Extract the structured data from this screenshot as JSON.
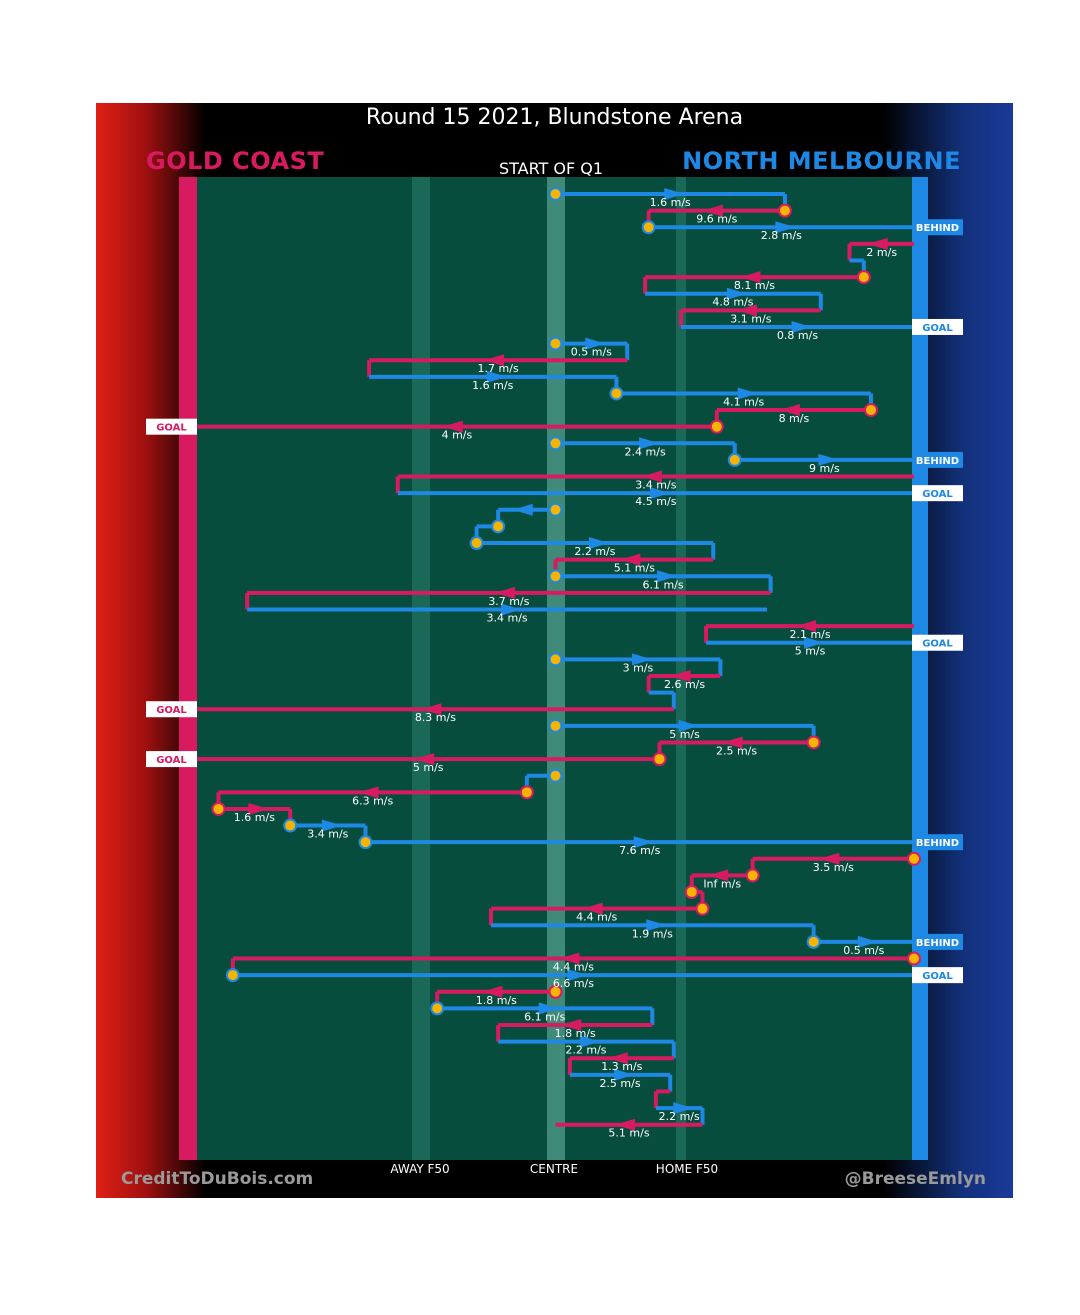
{
  "header": {
    "title": "Round 15 2021, Blundstone Arena",
    "home_team": "GOLD COAST",
    "away_team": "NORTH MELBOURNE",
    "quarter_label": "START OF Q1"
  },
  "footer": {
    "credit": "CreditToDuBois.com",
    "handle": "@BreeseEmlyn"
  },
  "colors": {
    "gold_coast": "#d81b60",
    "north_melbourne": "#1e88e5",
    "field": "#064d3e",
    "marker": "#f5b400"
  },
  "chart_data": {
    "type": "chain-path",
    "title": "Round 15 2021, Blundstone Arena",
    "x_axis_labels": [
      "AWAY F50",
      "CENTRE",
      "HOME F50"
    ],
    "x_range": [
      0,
      100
    ],
    "x_ticks": {
      "AWAY F50": 30,
      "CENTRE": 50,
      "HOME F50": 67.5
    },
    "legend": [
      {
        "team": "GOLD COAST",
        "color": "#d81b60"
      },
      {
        "team": "NORTH MELBOURNE",
        "color": "#1e88e5"
      }
    ],
    "segments": [
      {
        "team": "NM",
        "x1": 50,
        "x2": 82,
        "speed": "1.6 m/s",
        "start_marker": true,
        "end": null
      },
      {
        "team": "GC",
        "x1": 82,
        "x2": 63,
        "speed": "9.6 m/s",
        "start_marker": true,
        "end": null
      },
      {
        "team": "NM",
        "x1": 63,
        "x2": 100,
        "speed": "2.8 m/s",
        "start_marker": true,
        "end": "BEHIND"
      },
      {
        "team": "GC",
        "x1": 100,
        "x2": 91,
        "speed": "2 m/s",
        "start_marker": false,
        "end": null
      },
      {
        "team": "NM",
        "x1": 91,
        "x2": 93,
        "speed": "",
        "start_marker": false,
        "end": null
      },
      {
        "team": "GC",
        "x1": 93,
        "x2": 62.5,
        "speed": "8.1 m/s",
        "start_marker": true,
        "end": null
      },
      {
        "team": "NM",
        "x1": 62.5,
        "x2": 87,
        "speed": "4.8 m/s",
        "start_marker": false,
        "end": null
      },
      {
        "team": "GC",
        "x1": 87,
        "x2": 67.5,
        "speed": "3.1 m/s",
        "start_marker": false,
        "end": null
      },
      {
        "team": "NM",
        "x1": 67.5,
        "x2": 100,
        "speed": "0.8 m/s",
        "start_marker": false,
        "end": "GOAL"
      },
      {
        "team": "NM",
        "x1": 50,
        "x2": 60,
        "speed": "0.5 m/s",
        "start_marker": true,
        "end": null
      },
      {
        "team": "GC",
        "x1": 60,
        "x2": 24,
        "speed": "1.7 m/s",
        "start_marker": false,
        "end": null
      },
      {
        "team": "NM",
        "x1": 24,
        "x2": 58.5,
        "speed": "1.6 m/s",
        "start_marker": false,
        "end": null
      },
      {
        "team": "NM",
        "x1": 58.5,
        "x2": 94,
        "speed": "4.1 m/s",
        "start_marker": true,
        "end": null
      },
      {
        "team": "GC",
        "x1": 94,
        "x2": 72.5,
        "speed": "8 m/s",
        "start_marker": true,
        "end": null
      },
      {
        "team": "GC",
        "x1": 72.5,
        "x2": 0,
        "speed": "4 m/s",
        "start_marker": true,
        "end": "GOAL"
      },
      {
        "team": "NM",
        "x1": 50,
        "x2": 75,
        "speed": "2.4 m/s",
        "start_marker": true,
        "end": null
      },
      {
        "team": "NM",
        "x1": 75,
        "x2": 100,
        "speed": "9 m/s",
        "start_marker": true,
        "end": "BEHIND"
      },
      {
        "team": "GC",
        "x1": 100,
        "x2": 28,
        "speed": "3.4 m/s",
        "start_marker": false,
        "end": null
      },
      {
        "team": "NM",
        "x1": 28,
        "x2": 100,
        "speed": "4.5 m/s",
        "start_marker": false,
        "end": "GOAL"
      },
      {
        "team": "NM",
        "x1": 50,
        "x2": 42,
        "speed": "",
        "start_marker": true,
        "end": null
      },
      {
        "team": "NM",
        "x1": 42,
        "x2": 39,
        "speed": "",
        "start_marker": true,
        "end": null
      },
      {
        "team": "NM",
        "x1": 39,
        "x2": 72,
        "speed": "2.2 m/s",
        "start_marker": true,
        "end": null
      },
      {
        "team": "GC",
        "x1": 72,
        "x2": 50,
        "speed": "5.1 m/s",
        "start_marker": false,
        "end": null
      },
      {
        "team": "NM",
        "x1": 50,
        "x2": 80,
        "speed": "6.1 m/s",
        "start_marker": true,
        "end": null
      },
      {
        "team": "GC",
        "x1": 80,
        "x2": 7,
        "speed": "3.7 m/s",
        "start_marker": false,
        "end": null
      },
      {
        "team": "NM",
        "x1": 7,
        "x2": 79.5,
        "speed": "3.4 m/s",
        "start_marker": false,
        "end": null
      },
      {
        "team": "GC",
        "x1": 100,
        "x2": 71,
        "speed": "2.1 m/s",
        "start_marker": false,
        "end": null
      },
      {
        "team": "NM",
        "x1": 71,
        "x2": 100,
        "speed": "5 m/s",
        "start_marker": false,
        "end": "GOAL"
      },
      {
        "team": "NM",
        "x1": 50,
        "x2": 73,
        "speed": "3 m/s",
        "start_marker": true,
        "end": null
      },
      {
        "team": "GC",
        "x1": 73,
        "x2": 63,
        "speed": "2.6 m/s",
        "start_marker": false,
        "end": null
      },
      {
        "team": "NM",
        "x1": 63,
        "x2": 66.5,
        "speed": "",
        "start_marker": false,
        "end": null
      },
      {
        "team": "GC",
        "x1": 66.5,
        "x2": 0,
        "speed": "8.3 m/s",
        "start_marker": false,
        "end": "GOAL"
      },
      {
        "team": "NM",
        "x1": 50,
        "x2": 86,
        "speed": "5 m/s",
        "start_marker": true,
        "end": null
      },
      {
        "team": "GC",
        "x1": 86,
        "x2": 64.5,
        "speed": "2.5 m/s",
        "start_marker": true,
        "end": null
      },
      {
        "team": "GC",
        "x1": 64.5,
        "x2": 0,
        "speed": "5 m/s",
        "start_marker": true,
        "end": "GOAL"
      },
      {
        "team": "NM",
        "x1": 50,
        "x2": 46,
        "speed": "",
        "start_marker": true,
        "end": null
      },
      {
        "team": "GC",
        "x1": 46,
        "x2": 3,
        "speed": "6.3 m/s",
        "start_marker": true,
        "end": null
      },
      {
        "team": "GC",
        "x1": 3,
        "x2": 13,
        "speed": "1.6 m/s",
        "start_marker": true,
        "end": null
      },
      {
        "team": "NM",
        "x1": 13,
        "x2": 23.5,
        "speed": "3.4 m/s",
        "start_marker": true,
        "end": null
      },
      {
        "team": "NM",
        "x1": 23.5,
        "x2": 100,
        "speed": "7.6 m/s",
        "start_marker": true,
        "end": "BEHIND"
      },
      {
        "team": "GC",
        "x1": 100,
        "x2": 77.5,
        "speed": "3.5 m/s",
        "start_marker": true,
        "end": null
      },
      {
        "team": "GC",
        "x1": 77.5,
        "x2": 69,
        "speed": "Inf m/s",
        "start_marker": true,
        "end": null
      },
      {
        "team": "GC",
        "x1": 69,
        "x2": 70.5,
        "speed": "",
        "start_marker": true,
        "end": null
      },
      {
        "team": "GC",
        "x1": 70.5,
        "x2": 41,
        "speed": "4.4 m/s",
        "start_marker": true,
        "end": null
      },
      {
        "team": "NM",
        "x1": 41,
        "x2": 86,
        "speed": "1.9 m/s",
        "start_marker": false,
        "end": null
      },
      {
        "team": "NM",
        "x1": 86,
        "x2": 100,
        "speed": "0.5 m/s",
        "start_marker": true,
        "end": "BEHIND"
      },
      {
        "team": "GC",
        "x1": 100,
        "x2": 5,
        "speed": "4.4 m/s",
        "start_marker": true,
        "end": null
      },
      {
        "team": "NM",
        "x1": 5,
        "x2": 100,
        "speed": "6.6 m/s",
        "start_marker": true,
        "end": "GOAL"
      },
      {
        "team": "GC",
        "x1": 50,
        "x2": 33.5,
        "speed": "1.8 m/s",
        "start_marker": true,
        "end": null
      },
      {
        "team": "NM",
        "x1": 33.5,
        "x2": 63.5,
        "speed": "6.1 m/s",
        "start_marker": true,
        "end": null
      },
      {
        "team": "GC",
        "x1": 63.5,
        "x2": 42,
        "speed": "1.8 m/s",
        "start_marker": false,
        "end": null
      },
      {
        "team": "NM",
        "x1": 42,
        "x2": 66.5,
        "speed": "2.2 m/s",
        "start_marker": false,
        "end": null
      },
      {
        "team": "GC",
        "x1": 66.5,
        "x2": 52,
        "speed": "1.3 m/s",
        "start_marker": false,
        "end": null
      },
      {
        "team": "NM",
        "x1": 52,
        "x2": 66,
        "speed": "2.5 m/s",
        "start_marker": false,
        "end": null
      },
      {
        "team": "GC",
        "x1": 66,
        "x2": 64,
        "speed": "",
        "start_marker": false,
        "end": null
      },
      {
        "team": "NM",
        "x1": 64,
        "x2": 70.5,
        "speed": "2.2 m/s",
        "start_marker": false,
        "end": null
      },
      {
        "team": "GC",
        "x1": 70.5,
        "x2": 50,
        "speed": "5.1 m/s",
        "start_marker": false,
        "end": null
      }
    ]
  }
}
